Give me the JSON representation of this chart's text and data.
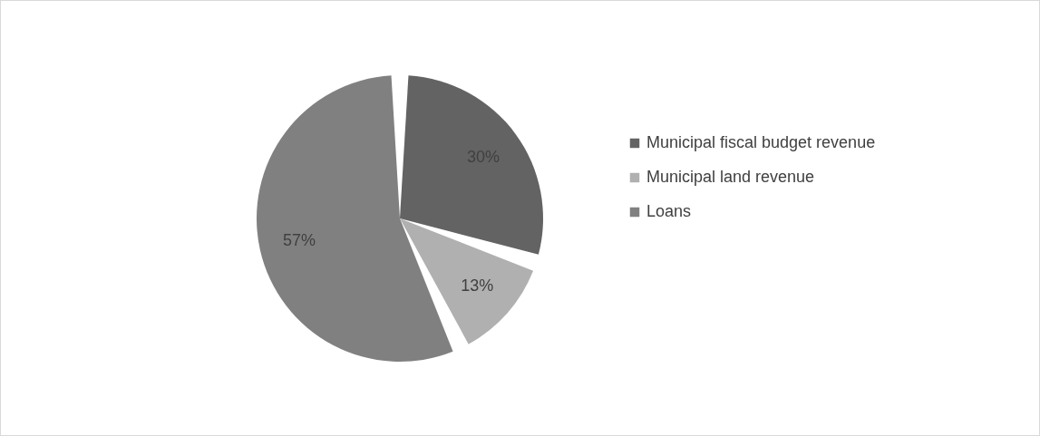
{
  "chart_data": {
    "type": "pie",
    "categories": [
      "Municipal fiscal budget revenue",
      "Municipal land revenue",
      "Loans"
    ],
    "values": [
      30,
      13,
      57
    ],
    "colors": [
      "#636363",
      "#b0b0b0",
      "#808080"
    ],
    "value_labels": [
      "30%",
      "13%",
      "57%"
    ],
    "legend": "right"
  }
}
